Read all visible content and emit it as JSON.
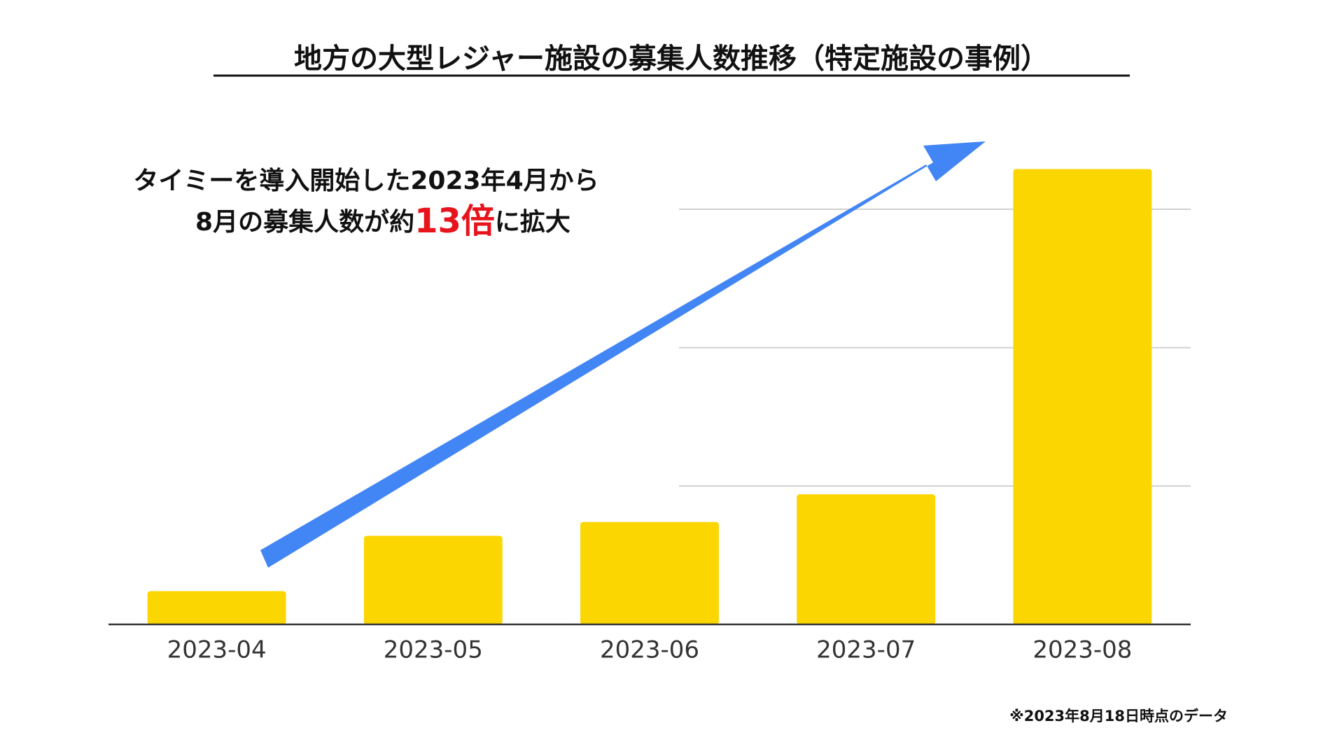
{
  "chart_data": {
    "type": "bar",
    "title": "地方の大型レジャー施設の募集人数推移（特定施設の事例）",
    "annotation": {
      "line1": "タイミーを導入開始した2023年4月から",
      "line2_before": "8月の募集人数が約",
      "line2_highlight": "13倍",
      "line2_after": "に拡大"
    },
    "footnote": "※2023年8月18日時点のデータ",
    "categories": [
      "2023-04",
      "2023-05",
      "2023-06",
      "2023-07",
      "2023-08"
    ],
    "values": [
      0.24,
      0.64,
      0.74,
      0.94,
      3.29
    ],
    "color": "#fcd600",
    "ylim": [
      0,
      3.5
    ],
    "yticks": [
      0,
      1,
      2,
      3
    ],
    "grid": true
  }
}
